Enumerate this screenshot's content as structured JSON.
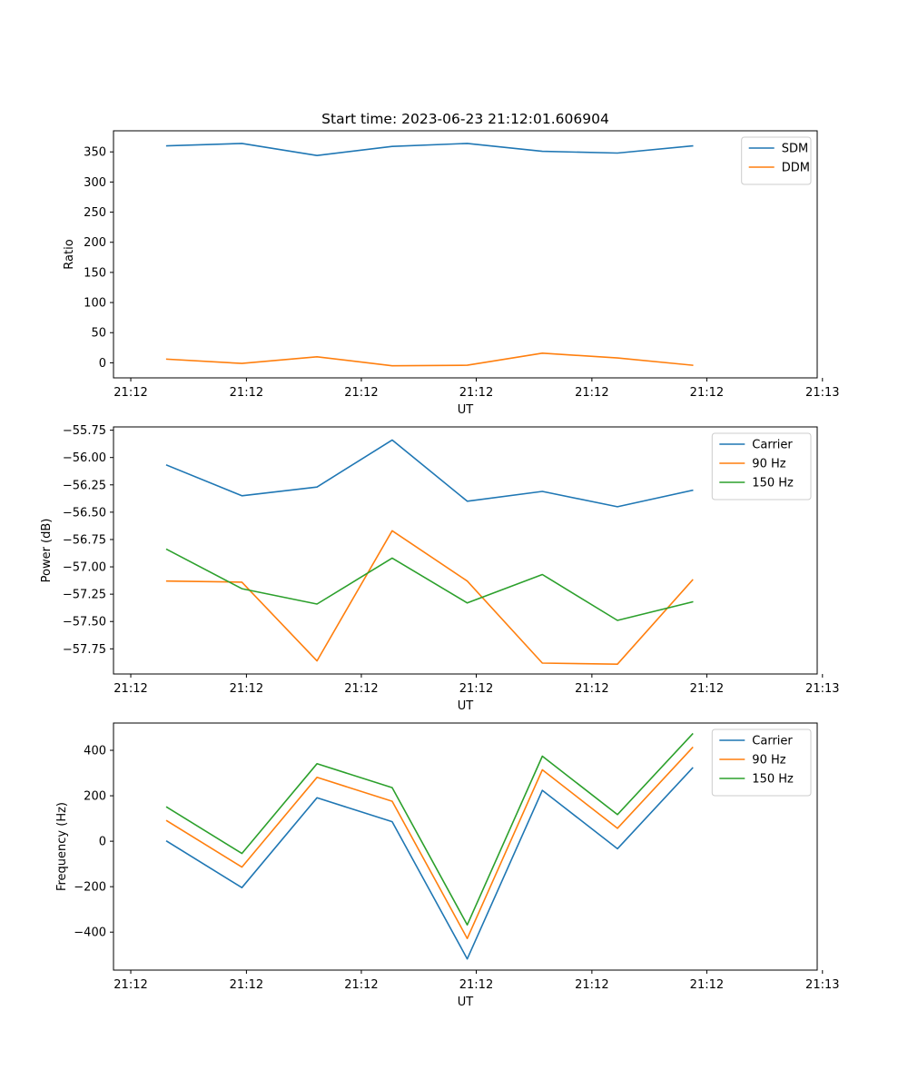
{
  "title": "Start time: 2023-06-23 21:12:01.606904",
  "chart_data": [
    {
      "type": "line",
      "ylabel": "Ratio",
      "xlabel": "UT",
      "x": [
        1,
        2,
        3,
        4,
        5,
        6,
        7,
        8
      ],
      "xlim": [
        0.29,
        9.66
      ],
      "xticks": [
        {
          "value": 0.52,
          "label": "21:12"
        },
        {
          "value": 2.06,
          "label": "21:12"
        },
        {
          "value": 3.59,
          "label": "21:12"
        },
        {
          "value": 5.12,
          "label": "21:12"
        },
        {
          "value": 6.66,
          "label": "21:12"
        },
        {
          "value": 8.19,
          "label": "21:12"
        },
        {
          "value": 9.73,
          "label": "21:13"
        }
      ],
      "ylim": [
        -25,
        385
      ],
      "yticks": [
        0,
        50,
        100,
        150,
        200,
        250,
        300,
        350
      ],
      "legend": "top-right",
      "series": [
        {
          "name": "SDM",
          "color": "#1f77b4",
          "values": [
            360,
            364,
            344,
            359,
            364,
            351,
            348,
            360
          ]
        },
        {
          "name": "DDM",
          "color": "#ff7f0e",
          "values": [
            6,
            -1,
            10,
            -5,
            -4,
            16,
            8,
            -4
          ]
        }
      ]
    },
    {
      "type": "line",
      "ylabel": "Power (dB)",
      "xlabel": "UT",
      "x": [
        1,
        2,
        3,
        4,
        5,
        6,
        7,
        8
      ],
      "xlim": [
        0.29,
        9.66
      ],
      "xticks": [
        {
          "value": 0.52,
          "label": "21:12"
        },
        {
          "value": 2.06,
          "label": "21:12"
        },
        {
          "value": 3.59,
          "label": "21:12"
        },
        {
          "value": 5.12,
          "label": "21:12"
        },
        {
          "value": 6.66,
          "label": "21:12"
        },
        {
          "value": 8.19,
          "label": "21:12"
        },
        {
          "value": 9.73,
          "label": "21:13"
        }
      ],
      "ylim": [
        -57.98,
        -55.72
      ],
      "yticks": [
        -57.75,
        -57.5,
        -57.25,
        -57.0,
        -56.75,
        -56.5,
        -56.25,
        -56.0,
        -55.75
      ],
      "yticklabels": [
        "−57.75",
        "−57.50",
        "−57.25",
        "−57.00",
        "−56.75",
        "−56.50",
        "−56.25",
        "−56.00",
        "−55.75"
      ],
      "legend": "top-right",
      "series": [
        {
          "name": "Carrier",
          "color": "#1f77b4",
          "values": [
            -56.07,
            -56.35,
            -56.27,
            -55.84,
            -56.4,
            -56.31,
            -56.45,
            -56.3
          ]
        },
        {
          "name": "90 Hz",
          "color": "#ff7f0e",
          "values": [
            -57.13,
            -57.14,
            -57.86,
            -56.67,
            -57.13,
            -57.88,
            -57.89,
            -57.12
          ]
        },
        {
          "name": "150 Hz",
          "color": "#2ca02c",
          "values": [
            -56.84,
            -57.2,
            -57.34,
            -56.92,
            -57.33,
            -57.07,
            -57.49,
            -57.32
          ]
        }
      ]
    },
    {
      "type": "line",
      "ylabel": "Frequency (Hz)",
      "xlabel": "UT",
      "x": [
        1,
        2,
        3,
        4,
        5,
        6,
        7,
        8
      ],
      "xlim": [
        0.29,
        9.66
      ],
      "xticks": [
        {
          "value": 0.52,
          "label": "21:12"
        },
        {
          "value": 2.06,
          "label": "21:12"
        },
        {
          "value": 3.59,
          "label": "21:12"
        },
        {
          "value": 5.12,
          "label": "21:12"
        },
        {
          "value": 6.66,
          "label": "21:12"
        },
        {
          "value": 8.19,
          "label": "21:12"
        },
        {
          "value": 9.73,
          "label": "21:13"
        }
      ],
      "ylim": [
        -567,
        520
      ],
      "yticks": [
        -400,
        -200,
        0,
        200,
        400
      ],
      "yticklabels": [
        "−400",
        "−200",
        "0",
        "200",
        "400"
      ],
      "legend": "top-right",
      "series": [
        {
          "name": "Carrier",
          "color": "#1f77b4",
          "values": [
            0,
            -204,
            191,
            86,
            -518,
            224,
            -33,
            322
          ]
        },
        {
          "name": "90 Hz",
          "color": "#ff7f0e",
          "values": [
            90,
            -114,
            281,
            176,
            -428,
            314,
            57,
            412
          ]
        },
        {
          "name": "150 Hz",
          "color": "#2ca02c",
          "values": [
            150,
            -54,
            341,
            236,
            -368,
            374,
            117,
            472
          ]
        }
      ]
    }
  ]
}
